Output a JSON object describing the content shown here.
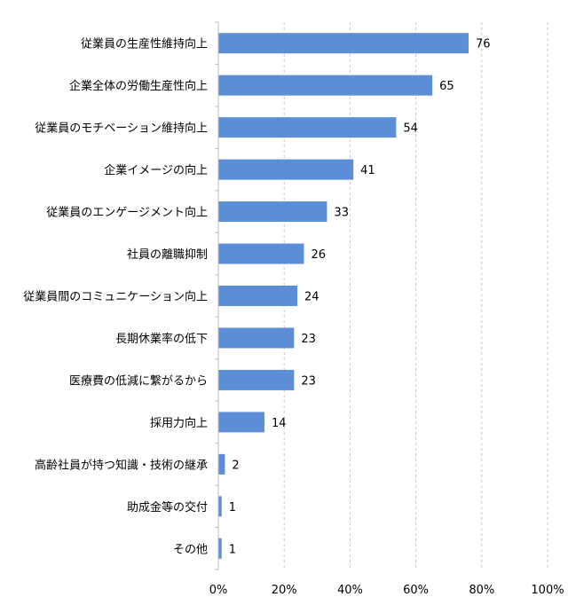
{
  "chart_data": {
    "type": "bar",
    "orientation": "horizontal",
    "categories": [
      "従業員の生産性維持向上",
      "企業全体の労働生産性向上",
      "従業員のモチベーション維持向上",
      "企業イメージの向上",
      "従業員のエンゲージメント向上",
      "社員の離職抑制",
      "従業員間のコミュニケーション向上",
      "長期休業率の低下",
      "医療費の低減に繋がるから",
      "採用力向上",
      "高齢社員が持つ知識・技術の継承",
      "助成金等の交付",
      "その他"
    ],
    "values": [
      76,
      65,
      54,
      41,
      33,
      26,
      24,
      23,
      23,
      14,
      2,
      1,
      1
    ],
    "xlim": [
      0,
      100
    ],
    "xticks": [
      "0%",
      "20%",
      "40%",
      "60%",
      "80%",
      "100%"
    ],
    "xtick_values": [
      0,
      20,
      40,
      60,
      80,
      100
    ],
    "grid": "vertical-dashed",
    "bar_color": "#5B8ED6",
    "legend": "none"
  }
}
